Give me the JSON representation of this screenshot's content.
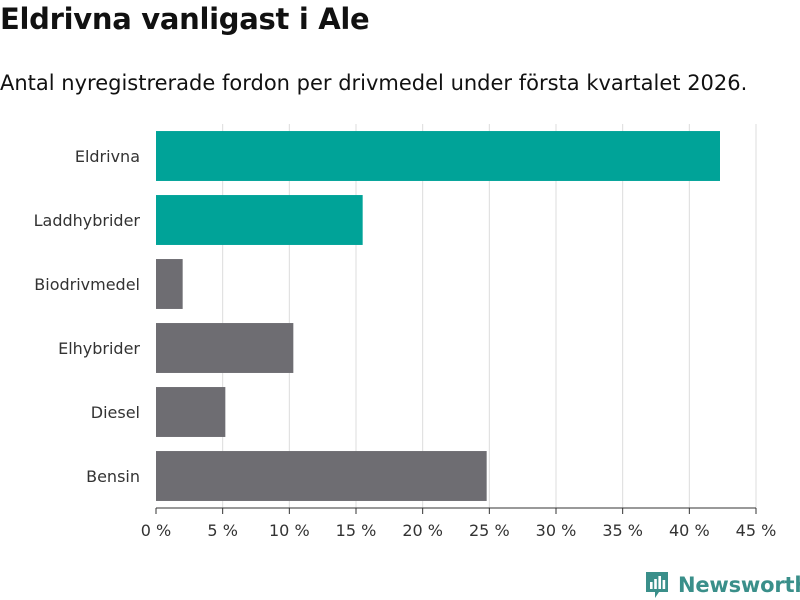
{
  "header": {
    "title": "Eldrivna vanligast i Ale",
    "subtitle": "Antal nyregistrerade fordon per drivmedel under första kvartalet 2026."
  },
  "brand": {
    "name": "Newsworthy",
    "color": "#3a8f8a"
  },
  "chart_data": {
    "type": "bar",
    "orientation": "horizontal",
    "title": "Eldrivna vanligast i Ale",
    "subtitle": "Antal nyregistrerade fordon per drivmedel under första kvartalet 2026.",
    "xlabel": "",
    "ylabel": "",
    "categories": [
      "Eldrivna",
      "Laddhybrider",
      "Biodrivmedel",
      "Elhybrider",
      "Diesel",
      "Bensin"
    ],
    "values": [
      42.3,
      15.5,
      2.0,
      10.3,
      5.2,
      24.8
    ],
    "highlight": [
      true,
      true,
      false,
      false,
      false,
      false
    ],
    "colors": {
      "highlight": "#00a398",
      "default": "#6e6d72"
    },
    "xlim": [
      0,
      45
    ],
    "xticks": [
      0,
      5,
      10,
      15,
      20,
      25,
      30,
      35,
      40,
      45
    ],
    "tick_labels": [
      "0 %",
      "5 %",
      "10 %",
      "15 %",
      "20 %",
      "25 %",
      "30 %",
      "35 %",
      "40 %",
      "45 %"
    ],
    "grid": true
  }
}
